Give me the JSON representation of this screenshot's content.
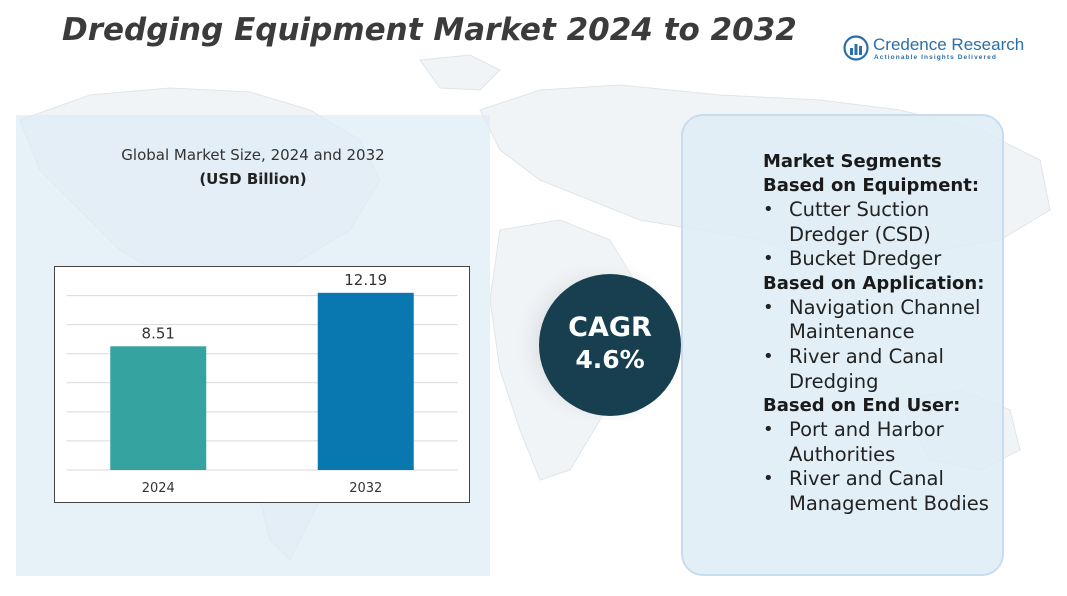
{
  "title": "Dredging Equipment Market 2024 to 2032",
  "brand": {
    "name": "Credence Research",
    "tagline": "Actionable Insights Delivered",
    "icon": "bar-chart-circle-icon",
    "color": "#2a6fa8"
  },
  "chart_data": {
    "type": "bar",
    "title": "Global Market Size, 2024 and 2032",
    "unit": "(USD Billion)",
    "categories": [
      "2024",
      "2032"
    ],
    "values": [
      8.51,
      12.19
    ],
    "colors": [
      "#35a39f",
      "#0a78b0"
    ],
    "ylim": [
      0,
      14
    ],
    "grid": true,
    "legend": "none"
  },
  "cagr": {
    "label": "CAGR",
    "value": "4.6%",
    "circle_color": "#173f4f"
  },
  "segments": {
    "heading": "Market Segments",
    "groups": [
      {
        "title": "Based on Equipment:",
        "items": [
          "Cutter Suction Dredger (CSD)",
          "Bucket Dredger"
        ]
      },
      {
        "title": "Based on Application:",
        "items": [
          "Navigation Channel Maintenance",
          "River and Canal Dredging"
        ]
      },
      {
        "title": "Based on End User:",
        "items": [
          "Port and Harbor Authorities",
          "River and Canal Management Bodies"
        ]
      }
    ]
  }
}
